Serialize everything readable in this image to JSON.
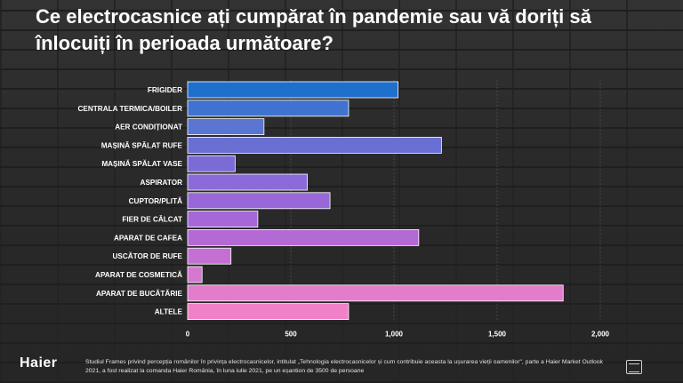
{
  "title": "Ce electrocasnice ați cumpărat în pandemie sau vă doriți să înlocuiți în perioada următoare?",
  "brand": "Haier",
  "footnote": "Studiul Frames privind percepția românilor în privința electrocasnicelor, intitulat „Tehnologia electrocasnicelor și cum contribuie aceasta la ușurarea vieții oamenilor\", parte a Haier Market Outlook 2021, a fost realizat la comanda Haier România, în luna iulie 2021, pe un eșantion de 3500 de persoane",
  "chart_data": {
    "type": "bar",
    "orientation": "horizontal",
    "title": "Ce electrocasnice ați cumpărat în pandemie sau vă doriți să înlocuiți în perioada următoare?",
    "xlabel": "",
    "ylabel": "",
    "categories": [
      "FRIGIDER",
      "CENTRALA TERMICA/BOILER",
      "AER CONDIȚIONAT",
      "MAȘINĂ SPĂLAT RUFE",
      "MAȘINĂ SPĂLAT VASE",
      "ASPIRATOR",
      "CUPTOR/PLITĂ",
      "FIER DE CĂLCAT",
      "APARAT DE CAFEA",
      "USCĂTOR DE RUFE",
      "APARAT DE COSMETICĂ",
      "APARAT DE BUCĂTĂRIE",
      "ALTELE"
    ],
    "values": [
      1020,
      780,
      370,
      1230,
      230,
      580,
      690,
      340,
      1120,
      210,
      70,
      1820,
      780
    ],
    "xlim": [
      0,
      2000
    ],
    "xticks": [
      0,
      500,
      1000,
      1500,
      2000
    ],
    "xtick_labels": [
      "0",
      "500",
      "1,000",
      "1,500",
      "2,000"
    ],
    "grid": true,
    "colors": [
      "#1f6fcc",
      "#3f73cf",
      "#5a75d2",
      "#6a6fd4",
      "#7a6bd6",
      "#8c6ad8",
      "#9868d8",
      "#a668d8",
      "#b46ad4",
      "#c470d2",
      "#d478d0",
      "#e47ccc",
      "#f081c8"
    ]
  }
}
